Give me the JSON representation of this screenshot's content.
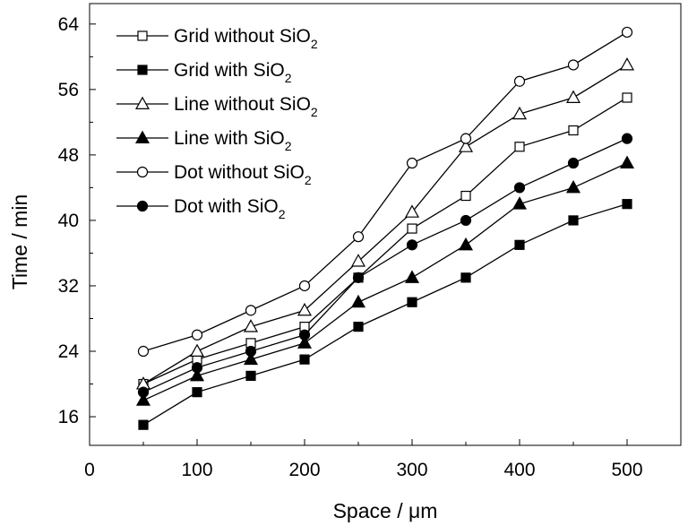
{
  "chart_data": {
    "type": "line",
    "xlabel": "Space / μm",
    "ylabel": "Time / min",
    "xlim": [
      0,
      550
    ],
    "ylim": [
      12.5,
      66.5
    ],
    "xticks": [
      0,
      100,
      200,
      300,
      400,
      500
    ],
    "yticks": [
      16,
      24,
      32,
      40,
      48,
      56,
      64
    ],
    "grid": false,
    "legend_position": "top-left",
    "x": [
      50,
      100,
      150,
      200,
      250,
      300,
      350,
      400,
      450,
      500
    ],
    "series": [
      {
        "name": "Grid without SiO2",
        "legend_main": "Grid without SiO",
        "legend_sub": "2",
        "marker": "square-open",
        "values": [
          20,
          23,
          25,
          27,
          33,
          39,
          43,
          49,
          51,
          55
        ]
      },
      {
        "name": "Grid with SiO2",
        "legend_main": "Grid with SiO",
        "legend_sub": "2",
        "marker": "square-filled",
        "values": [
          15,
          19,
          21,
          23,
          27,
          30,
          33,
          37,
          40,
          42
        ]
      },
      {
        "name": "Line without SiO2",
        "legend_main": "Line without SiO",
        "legend_sub": "2",
        "marker": "triangle-open",
        "values": [
          20,
          24,
          27,
          29,
          35,
          41,
          49,
          53,
          55,
          59
        ]
      },
      {
        "name": "Line with SiO2",
        "legend_main": "Line with SiO",
        "legend_sub": "2",
        "marker": "triangle-filled",
        "values": [
          18,
          21,
          23,
          25,
          30,
          33,
          37,
          42,
          44,
          47
        ]
      },
      {
        "name": "Dot without SiO2",
        "legend_main": "Dot without SiO",
        "legend_sub": "2",
        "marker": "circle-open",
        "values": [
          24,
          26,
          29,
          32,
          38,
          47,
          50,
          57,
          59,
          63
        ]
      },
      {
        "name": "Dot with SiO2",
        "legend_main": "Dot with SiO",
        "legend_sub": "2",
        "marker": "circle-filled",
        "values": [
          19,
          22,
          24,
          26,
          33,
          37,
          40,
          44,
          47,
          50
        ]
      }
    ]
  }
}
